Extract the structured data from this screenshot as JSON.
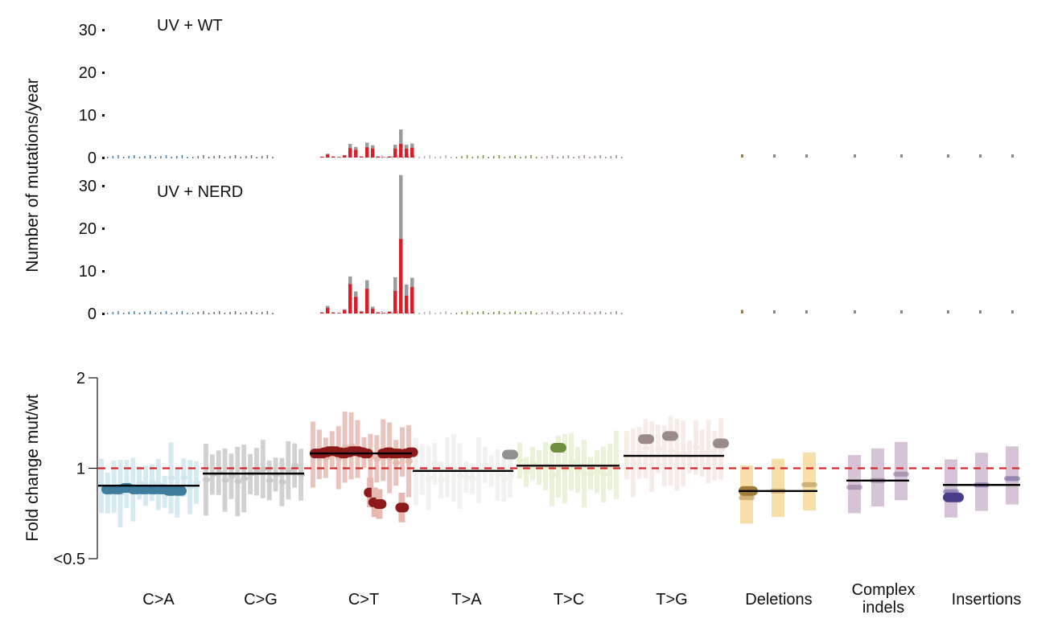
{
  "colors": {
    "C>A": "#3f7c9e",
    "C>A_light": "#cfe6ef",
    "C>G": "#6a6a6a",
    "C>G_light": "#c9c9c9",
    "C>T": "#8c1a1a",
    "C>T_light": "#e6b8b0",
    "C>T_bar": "#d61f2a",
    "T>A": "#b3b3b3",
    "T>A_light": "#efefec",
    "T>C": "#6f8f3c",
    "T>C_light": "#e6f0d2",
    "T>G": "#9a8a88",
    "T>G_light": "#f6e8e4",
    "Deletions": "#a07b3a",
    "Deletions_light": "#f7dfaa",
    "Complex indels": "#7a5c8c",
    "Complex indels_light": "#d6c3d8",
    "Insertions": "#4a3c88",
    "Insertions_light": "#d6c3d8",
    "bar_gray": "#9c9c9c",
    "reference_line": "#cc2a2a"
  },
  "chart_data": [
    {
      "type": "bar",
      "panel": "top",
      "title": "UV + WT",
      "ylabel": "Number of mutations/year",
      "ylim": [
        0,
        30
      ],
      "yticks": [
        "0",
        "10",
        "20",
        "30"
      ],
      "categories": [
        "C>A",
        "C>G",
        "C>T",
        "T>A",
        "T>C",
        "T>G",
        "Deletions",
        "Complex indels",
        "Insertions"
      ],
      "ct_context_values": [
        0.2,
        0.9,
        0.3,
        0.2,
        0.6,
        3.2,
        2.5,
        0.3,
        3.5,
        2.9,
        0.3,
        0.1,
        0.3,
        3.0,
        6.6,
        3.0,
        3.3
      ],
      "ct_context_red_values": [
        0.2,
        0.7,
        0.2,
        0.1,
        0.5,
        2.2,
        1.8,
        0.2,
        2.4,
        2.1,
        0.2,
        0.1,
        0.2,
        2.1,
        3.2,
        2.1,
        2.3
      ],
      "other_contexts_value": 0.1,
      "indel_values": [
        0.2,
        0.1,
        0.1,
        0.1,
        0.1,
        0.1,
        0.1,
        0.1
      ]
    },
    {
      "type": "bar",
      "panel": "middle",
      "title": "UV + NERD",
      "ylabel": "Number of mutations/year",
      "ylim": [
        0,
        30
      ],
      "yticks": [
        "0",
        "10",
        "20",
        "30"
      ],
      "categories": [
        "C>A",
        "C>G",
        "C>T",
        "T>A",
        "T>C",
        "T>G",
        "Deletions",
        "Complex indels",
        "Insertions"
      ],
      "ct_context_values": [
        0.3,
        1.8,
        0.3,
        0.2,
        1.0,
        8.7,
        5.2,
        0.6,
        7.8,
        1.6,
        0.3,
        0.2,
        0.5,
        8.5,
        32.5,
        6.8,
        8.4
      ],
      "ct_context_red_values": [
        0.2,
        1.3,
        0.2,
        0.1,
        0.8,
        6.9,
        3.9,
        0.4,
        5.8,
        1.1,
        0.2,
        0.1,
        0.4,
        5.3,
        17.5,
        4.2,
        6.2
      ],
      "other_contexts_value": 0.2,
      "indel_values": [
        0.3,
        0.1,
        0.1,
        0.1,
        0.1,
        0.1,
        0.1,
        0.1
      ]
    },
    {
      "type": "scatter",
      "panel": "bottom",
      "ylabel": "Fold change mut/wt",
      "y_scale": "log",
      "ylim": [
        0.5,
        2
      ],
      "yticks": [
        "<0.5",
        "1",
        "2"
      ],
      "reference_value": 1,
      "categories": [
        "C>A",
        "C>G",
        "C>T",
        "T>A",
        "T>C",
        "T>G",
        "Deletions",
        "Complex\nindels",
        "Insertions"
      ],
      "category_medians": [
        0.875,
        0.96,
        1.12,
        0.98,
        1.02,
        1.1,
        0.84,
        0.91,
        0.88
      ],
      "ct_highlight_values": [
        1.12,
        1.12,
        1.13,
        1.14,
        1.14,
        1.13,
        1.12,
        1.13,
        1.14,
        1.14,
        1.13,
        1.12,
        0.83,
        0.77,
        0.76,
        1.12,
        1.13,
        1.12,
        1.12,
        0.74,
        1.12,
        1.13
      ],
      "ca_highlight_values": [
        0.85,
        0.85,
        0.86,
        0.85,
        0.85,
        0.85,
        0.85,
        0.84,
        0.84
      ],
      "tc_highlight_value": 1.17,
      "ta_highlight_value": 1.11,
      "tg_highlight_values": [
        1.25,
        1.28,
        1.21
      ],
      "deletions_highlight_value": 0.84,
      "insertions_highlight_value": 0.8
    }
  ]
}
